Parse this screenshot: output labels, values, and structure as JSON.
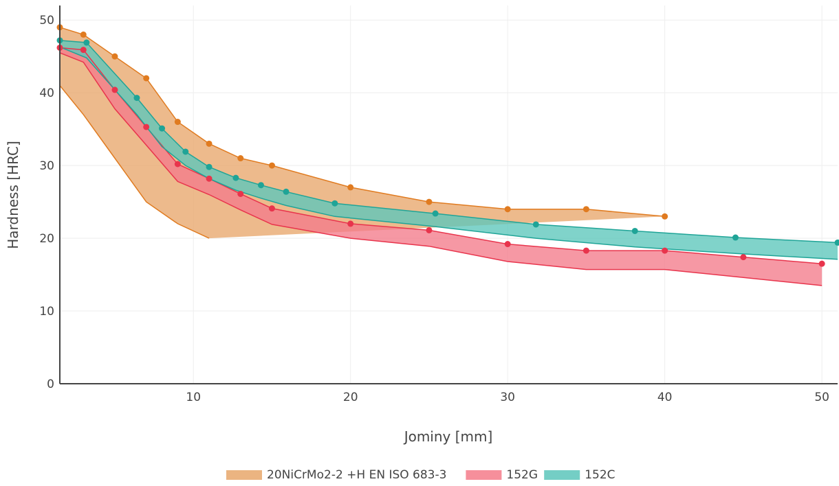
{
  "chart_data": {
    "type": "area",
    "title": "",
    "xlabel": "Jominy [mm]",
    "ylabel": "Hardness [HRC]",
    "xlim": [
      1.5,
      51
    ],
    "ylim": [
      0,
      52
    ],
    "x_ticks": [
      10,
      20,
      30,
      40,
      50
    ],
    "y_ticks": [
      0,
      10,
      20,
      30,
      40,
      50
    ],
    "x_tick_labels": [
      "10",
      "20",
      "30",
      "40",
      "50"
    ],
    "y_tick_labels": [
      "0",
      "10",
      "20",
      "30",
      "40",
      "50"
    ],
    "grid": true,
    "legend_position": "bottom-center",
    "series": [
      {
        "name": "20NiCrMo2-2 +H EN ISO 683-3",
        "fill_color": "#e8a76b",
        "line_color": "#e07b20",
        "marker_color": "#e07b20",
        "markers": "upper",
        "upper": {
          "x": [
            1.5,
            3,
            5,
            7,
            9,
            11,
            13,
            15,
            20,
            25,
            30,
            35,
            40
          ],
          "y": [
            49,
            48,
            45,
            42,
            36,
            33,
            31,
            30,
            27,
            25,
            24,
            24,
            23
          ]
        },
        "lower": {
          "x": [
            1.5,
            3,
            5,
            7,
            9,
            11
          ],
          "y": [
            41,
            37,
            31,
            25,
            22,
            20
          ]
        }
      },
      {
        "name": "152G",
        "fill_color": "#f47b8a",
        "line_color": "#e8344c",
        "marker_color": "#e8344c",
        "markers": "upper",
        "upper": {
          "x": [
            1.5,
            3,
            5,
            7,
            9,
            11,
            13,
            15,
            20,
            25,
            30,
            35,
            40,
            45,
            50
          ],
          "y": [
            46.2,
            45.9,
            40.4,
            35.3,
            30.2,
            28.2,
            26.1,
            24.1,
            22,
            21.1,
            19.2,
            18.3,
            18.3,
            17.4,
            16.5
          ]
        },
        "lower": {
          "x": [
            1.5,
            3,
            5,
            7,
            9,
            11,
            13,
            15,
            20,
            25,
            30,
            35,
            40,
            45,
            50
          ],
          "y": [
            45.5,
            44.2,
            37.8,
            32.8,
            27.8,
            26,
            23.9,
            21.9,
            20,
            18.9,
            16.8,
            15.7,
            15.7,
            14.6,
            13.5
          ]
        }
      },
      {
        "name": "152C",
        "fill_color": "#5cc6bb",
        "line_color": "#1fa497",
        "marker_color": "#1fa497",
        "markers": "upper",
        "upper": {
          "x": [
            1.5,
            3.2,
            6.4,
            8,
            9.5,
            11,
            12.7,
            14.3,
            15.9,
            19,
            25.4,
            31.8,
            38.1,
            44.5,
            51
          ],
          "y": [
            47.2,
            46.9,
            39.3,
            35.1,
            31.9,
            29.8,
            28.3,
            27.3,
            26.4,
            24.8,
            23.4,
            21.9,
            21,
            20.1,
            19.4
          ]
        },
        "lower": {
          "x": [
            1.5,
            3.2,
            6.4,
            8,
            9.5,
            11,
            12.7,
            14.3,
            15.9,
            19,
            25.4,
            31.8,
            38.1,
            44.5,
            51
          ],
          "y": [
            46.3,
            44.8,
            37,
            32.6,
            30,
            28.2,
            26.6,
            25.5,
            24.5,
            23,
            21.6,
            20,
            18.8,
            17.9,
            17.1
          ]
        }
      }
    ]
  }
}
